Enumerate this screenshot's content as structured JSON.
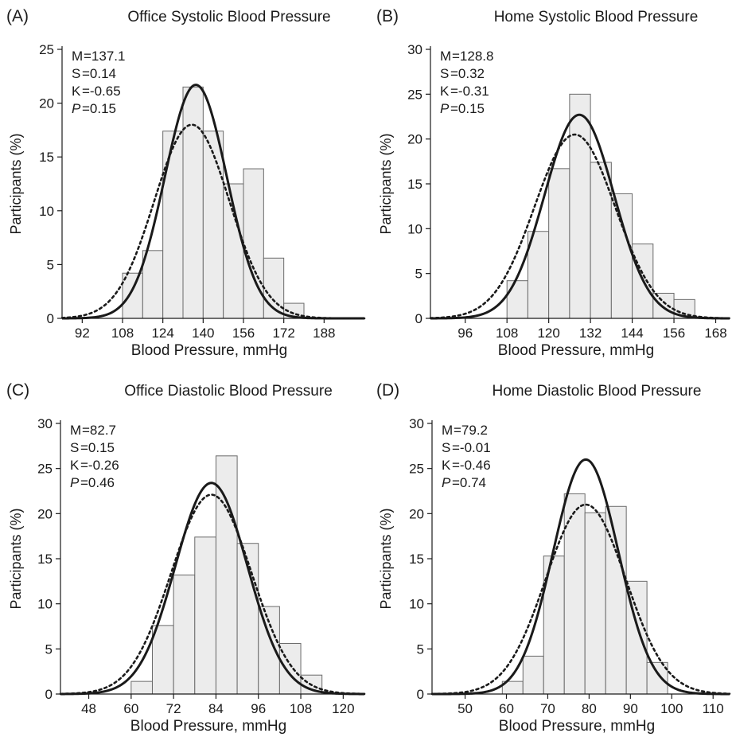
{
  "chart_data": [
    {
      "type": "bar",
      "panel_label": "(A)",
      "title": "Office Systolic Blood Pressure",
      "xlabel": "Blood Pressure, mmHg",
      "ylabel": "Participants (%)",
      "xlim": [
        84,
        204
      ],
      "ylim": [
        0,
        25
      ],
      "xticks": [
        92,
        108,
        124,
        140,
        156,
        172,
        188
      ],
      "yticks": [
        0,
        5,
        10,
        15,
        20,
        25
      ],
      "stats": [
        {
          "label": "M",
          "value": "=137.1"
        },
        {
          "label": "S",
          "value": " =0.14"
        },
        {
          "label": "K",
          "value": " =-0.65"
        },
        {
          "label": "P",
          "value": " =0.15",
          "italic": true
        }
      ],
      "bins": [
        {
          "x0": 100,
          "x1": 108,
          "value": 0
        },
        {
          "x0": 108,
          "x1": 116,
          "value": 4.2
        },
        {
          "x0": 116,
          "x1": 124,
          "value": 6.3
        },
        {
          "x0": 124,
          "x1": 132,
          "value": 17.4
        },
        {
          "x0": 132,
          "x1": 140,
          "value": 21.5
        },
        {
          "x0": 140,
          "x1": 148,
          "value": 17.4
        },
        {
          "x0": 148,
          "x1": 156,
          "value": 12.5
        },
        {
          "x0": 156,
          "x1": 164,
          "value": 13.9
        },
        {
          "x0": 164,
          "x1": 172,
          "value": 5.6
        },
        {
          "x0": 172,
          "x1": 180,
          "value": 1.4
        }
      ],
      "curves": [
        {
          "style": "solid",
          "mean": 137.1,
          "sd": 12.3,
          "peak": 21.7
        },
        {
          "style": "dotted",
          "mean": 135.5,
          "sd": 14.9,
          "peak": 18.0
        }
      ]
    },
    {
      "type": "bar",
      "panel_label": "(B)",
      "title": "Home Systolic Blood Pressure",
      "xlabel": "Blood Pressure, mmHg",
      "ylabel": "Participants (%)",
      "xlim": [
        86,
        172
      ],
      "ylim": [
        0,
        30
      ],
      "xticks": [
        96,
        108,
        120,
        132,
        144,
        156,
        168
      ],
      "yticks": [
        0,
        5,
        10,
        15,
        20,
        25,
        30
      ],
      "stats": [
        {
          "label": "M",
          "value": "=128.8"
        },
        {
          "label": "S",
          "value": " =0.32"
        },
        {
          "label": "K",
          "value": " =-0.31"
        },
        {
          "label": "P",
          "value": " =0.15",
          "italic": true
        }
      ],
      "bins": [
        {
          "x0": 102,
          "x1": 108,
          "value": 0
        },
        {
          "x0": 108,
          "x1": 114,
          "value": 4.2
        },
        {
          "x0": 114,
          "x1": 120,
          "value": 9.7
        },
        {
          "x0": 120,
          "x1": 126,
          "value": 16.7
        },
        {
          "x0": 126,
          "x1": 132,
          "value": 25.0
        },
        {
          "x0": 132,
          "x1": 138,
          "value": 17.4
        },
        {
          "x0": 138,
          "x1": 144,
          "value": 13.9
        },
        {
          "x0": 144,
          "x1": 150,
          "value": 8.3
        },
        {
          "x0": 150,
          "x1": 156,
          "value": 2.8
        },
        {
          "x0": 156,
          "x1": 162,
          "value": 2.1
        }
      ],
      "curves": [
        {
          "style": "solid",
          "mean": 128.8,
          "sd": 10.0,
          "peak": 22.7
        },
        {
          "style": "dotted",
          "mean": 127.5,
          "sd": 11.6,
          "peak": 20.5
        }
      ]
    },
    {
      "type": "bar",
      "panel_label": "(C)",
      "title": "Office Diastolic Blood Pressure",
      "xlabel": "Blood Pressure, mmHg",
      "ylabel": "Participants (%)",
      "xlim": [
        40,
        126
      ],
      "ylim": [
        0,
        30
      ],
      "xticks": [
        48,
        60,
        72,
        84,
        96,
        108,
        120
      ],
      "yticks": [
        0,
        5,
        10,
        15,
        20,
        25,
        30
      ],
      "stats": [
        {
          "label": "M",
          "value": "=82.7"
        },
        {
          "label": "S",
          "value": " =0.15"
        },
        {
          "label": "K",
          "value": " =-0.26"
        },
        {
          "label": "P",
          "value": " =0.46",
          "italic": true
        }
      ],
      "bins": [
        {
          "x0": 60,
          "x1": 66,
          "value": 1.4
        },
        {
          "x0": 66,
          "x1": 72,
          "value": 7.6
        },
        {
          "x0": 72,
          "x1": 78,
          "value": 13.2
        },
        {
          "x0": 78,
          "x1": 84,
          "value": 17.4
        },
        {
          "x0": 84,
          "x1": 90,
          "value": 26.4
        },
        {
          "x0": 90,
          "x1": 96,
          "value": 16.7
        },
        {
          "x0": 96,
          "x1": 102,
          "value": 9.7
        },
        {
          "x0": 102,
          "x1": 108,
          "value": 5.6
        },
        {
          "x0": 108,
          "x1": 114,
          "value": 2.1
        }
      ],
      "curves": [
        {
          "style": "solid",
          "mean": 82.7,
          "sd": 10.2,
          "peak": 23.4
        },
        {
          "style": "dotted",
          "mean": 82.7,
          "sd": 11.4,
          "peak": 22.1
        }
      ]
    },
    {
      "type": "bar",
      "panel_label": "(D)",
      "title": "Home Diastolic Blood Pressure",
      "xlabel": "Blood Pressure, mmHg",
      "ylabel": "Participants (%)",
      "xlim": [
        42,
        114
      ],
      "ylim": [
        0,
        30
      ],
      "xticks": [
        50,
        60,
        70,
        80,
        90,
        100,
        110
      ],
      "yticks": [
        0,
        5,
        10,
        15,
        20,
        25,
        30
      ],
      "stats": [
        {
          "label": "M",
          "value": "=79.2"
        },
        {
          "label": "S",
          "value": " =-0.01"
        },
        {
          "label": "K",
          "value": " =-0.46"
        },
        {
          "label": "P",
          "value": " =0.74",
          "italic": true
        }
      ],
      "bins": [
        {
          "x0": 59,
          "x1": 64,
          "value": 1.4
        },
        {
          "x0": 64,
          "x1": 69,
          "value": 4.2
        },
        {
          "x0": 69,
          "x1": 74,
          "value": 15.3
        },
        {
          "x0": 74,
          "x1": 79,
          "value": 22.2
        },
        {
          "x0": 79,
          "x1": 84,
          "value": 20.1
        },
        {
          "x0": 84,
          "x1": 89,
          "value": 20.8
        },
        {
          "x0": 89,
          "x1": 94,
          "value": 12.5
        },
        {
          "x0": 94,
          "x1": 99,
          "value": 3.5
        }
      ],
      "curves": [
        {
          "style": "solid",
          "mean": 79.2,
          "sd": 7.9,
          "peak": 26.0
        },
        {
          "style": "dotted",
          "mean": 79.2,
          "sd": 9.7,
          "peak": 21.0
        }
      ]
    }
  ]
}
